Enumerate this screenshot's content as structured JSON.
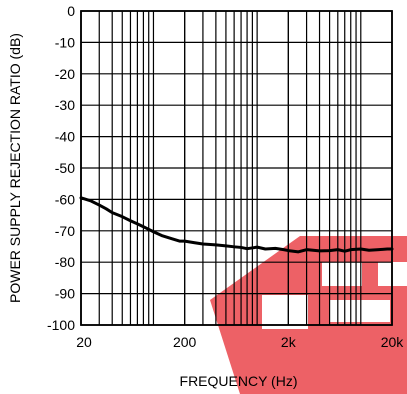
{
  "chart_data": {
    "type": "line",
    "xlabel": "FREQUENCY (Hz)",
    "ylabel": "POWER SUPPLY REJECTION RATIO (dB)",
    "x_scale": "log",
    "xlim": [
      20,
      20000
    ],
    "ylim": [
      -100,
      0
    ],
    "grid": true,
    "x_ticks": [
      20,
      200,
      2000,
      20000
    ],
    "x_tick_labels": [
      "20",
      "200",
      "2k",
      "20k"
    ],
    "y_ticks": [
      0,
      -10,
      -20,
      -30,
      -40,
      -50,
      -60,
      -70,
      -80,
      -90,
      -100
    ],
    "y_tick_labels": [
      "0",
      "-10",
      "-20",
      "-30",
      "-40",
      "-50",
      "-60",
      "-70",
      "-80",
      "-90",
      "-100"
    ],
    "series": [
      {
        "color": "#000000",
        "x": [
          20,
          25,
          30,
          35,
          40,
          50,
          60,
          70,
          80,
          100,
          120,
          150,
          180,
          200,
          250,
          300,
          400,
          500,
          600,
          700,
          800,
          1000,
          1200,
          1500,
          1800,
          2000,
          2500,
          3000,
          4000,
          5000,
          6000,
          7000,
          8000,
          10000,
          12000,
          15000,
          18000,
          20000
        ],
        "y": [
          -59.5,
          -60.5,
          -61.8,
          -63.0,
          -64.2,
          -65.5,
          -66.8,
          -67.8,
          -68.7,
          -70.3,
          -71.5,
          -72.5,
          -73.3,
          -73.3,
          -73.8,
          -74.2,
          -74.5,
          -74.8,
          -75.1,
          -75.3,
          -75.7,
          -75.2,
          -75.8,
          -75.6,
          -76.0,
          -76.3,
          -76.7,
          -76.0,
          -76.4,
          -76.3,
          -76.0,
          -76.5,
          -76.0,
          -75.8,
          -76.2,
          -76.0,
          -75.8,
          -75.8
        ]
      }
    ]
  },
  "watermark": {
    "color": "#e8353b"
  }
}
